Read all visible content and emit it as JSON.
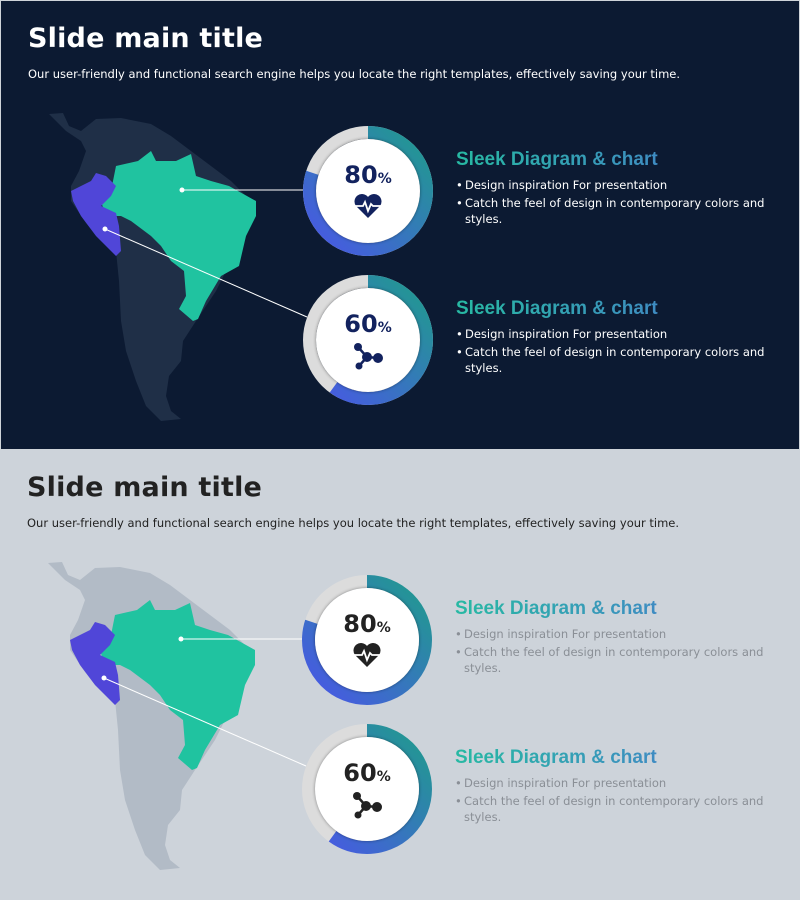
{
  "slides": [
    {
      "theme": "dark",
      "title": "Slide main title",
      "subtitle": "Our user-friendly and functional search engine helps you locate the right templates, effectively saving your time.",
      "colors": {
        "background": "#0c1a32",
        "continent": "#1f2f47",
        "brazil": "#20c3a0",
        "peru": "#5046d8"
      },
      "items": [
        {
          "value": 80,
          "label": "80",
          "unit": "%",
          "icon": "heart-pulse-icon",
          "heading": "Sleek Diagram & chart",
          "bullets": [
            "Design inspiration For presentation",
            "Catch the feel of design in contemporary colors and styles."
          ]
        },
        {
          "value": 60,
          "label": "60",
          "unit": "%",
          "icon": "molecule-icon",
          "heading": "Sleek Diagram & chart",
          "bullets": [
            "Design inspiration For presentation",
            "Catch the feel of design in contemporary colors and styles."
          ]
        }
      ]
    },
    {
      "theme": "light",
      "title": "Slide main title",
      "subtitle": "Our user-friendly and functional search engine helps you locate the right templates, effectively saving your time.",
      "colors": {
        "background": "#cdd3da",
        "continent": "#b2bbc6",
        "brazil": "#20c3a0",
        "peru": "#5046d8"
      },
      "items": [
        {
          "value": 80,
          "label": "80",
          "unit": "%",
          "icon": "heart-pulse-icon",
          "heading": "Sleek Diagram & chart",
          "bullets": [
            "Design inspiration For presentation",
            "Catch the feel of design in contemporary colors and styles."
          ]
        },
        {
          "value": 60,
          "label": "60",
          "unit": "%",
          "icon": "molecule-icon",
          "heading": "Sleek Diagram & chart",
          "bullets": [
            "Design inspiration For presentation",
            "Catch the feel of design in contemporary colors and styles."
          ]
        }
      ]
    }
  ]
}
